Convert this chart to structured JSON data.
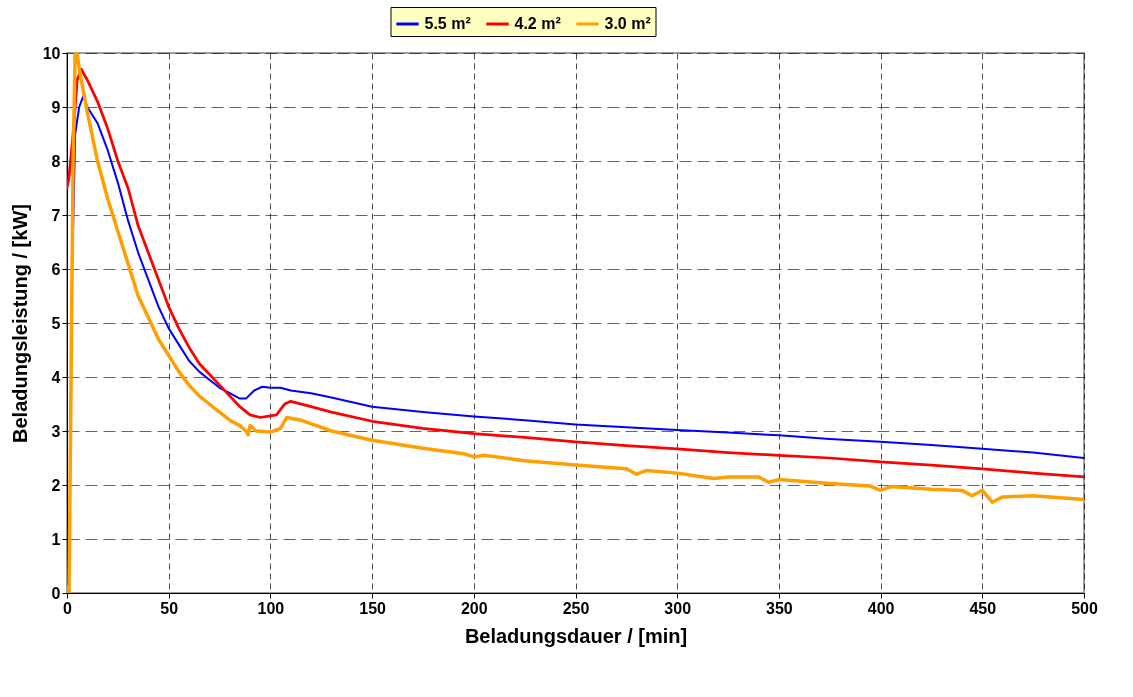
{
  "chart_data": {
    "type": "line",
    "xlabel": "Beladungsdauer / [min]",
    "ylabel": "Beladungsleistung / [kW]",
    "xlim": [
      0,
      500
    ],
    "xticks": [
      0,
      50,
      100,
      150,
      200,
      250,
      300,
      350,
      400,
      450,
      500
    ],
    "ylim": [
      0,
      10
    ],
    "yticks": [
      0,
      1,
      2,
      3,
      4,
      5,
      6,
      7,
      8,
      9,
      10
    ],
    "grid": true,
    "legend": "top",
    "line_style": "solid",
    "marker": "none",
    "series": [
      {
        "name": "5.5 m²",
        "color": "#0000ff",
        "x": [
          2,
          4,
          6,
          8,
          10,
          15,
          20,
          25,
          30,
          35,
          40,
          45,
          50,
          55,
          60,
          65,
          70,
          75,
          80,
          85,
          88,
          92,
          96,
          100,
          105,
          110,
          120,
          130,
          150,
          175,
          200,
          225,
          250,
          275,
          300,
          325,
          350,
          375,
          400,
          425,
          450,
          475,
          500
        ],
        "values": [
          5,
          8.5,
          9.0,
          9.2,
          9.0,
          8.7,
          8.2,
          7.6,
          6.9,
          6.3,
          5.8,
          5.3,
          4.9,
          4.6,
          4.3,
          4.1,
          3.95,
          3.8,
          3.7,
          3.6,
          3.6,
          3.75,
          3.82,
          3.8,
          3.8,
          3.75,
          3.7,
          3.62,
          3.45,
          3.35,
          3.27,
          3.2,
          3.12,
          3.07,
          3.02,
          2.97,
          2.92,
          2.85,
          2.8,
          2.74,
          2.67,
          2.6,
          2.5
        ]
      },
      {
        "name": "4.2 m²",
        "color": "#ff0000",
        "x": [
          0,
          1,
          3,
          5,
          7,
          10,
          15,
          20,
          25,
          30,
          35,
          40,
          45,
          50,
          55,
          60,
          65,
          70,
          75,
          80,
          85,
          90,
          95,
          100,
          103,
          107,
          110,
          120,
          130,
          150,
          175,
          200,
          225,
          250,
          275,
          300,
          325,
          350,
          375,
          400,
          425,
          450,
          475,
          500
        ],
        "values": [
          7.5,
          7.7,
          8.5,
          9.5,
          9.7,
          9.5,
          9.1,
          8.6,
          8.0,
          7.5,
          6.8,
          6.3,
          5.8,
          5.3,
          4.9,
          4.55,
          4.25,
          4.05,
          3.85,
          3.65,
          3.45,
          3.3,
          3.25,
          3.28,
          3.3,
          3.5,
          3.55,
          3.45,
          3.35,
          3.18,
          3.05,
          2.95,
          2.88,
          2.8,
          2.73,
          2.67,
          2.6,
          2.55,
          2.5,
          2.43,
          2.37,
          2.3,
          2.22,
          2.15
        ]
      },
      {
        "name": "3.0 m²",
        "color": "#ffa000",
        "x": [
          0,
          1,
          2,
          3,
          4,
          5,
          6,
          8,
          10,
          15,
          20,
          25,
          30,
          35,
          40,
          45,
          50,
          55,
          60,
          65,
          70,
          75,
          80,
          85,
          88,
          89,
          90,
          93,
          100,
          105,
          108,
          115,
          130,
          150,
          175,
          195,
          200,
          205,
          225,
          250,
          275,
          280,
          285,
          300,
          318,
          325,
          340,
          345,
          350,
          375,
          395,
          400,
          405,
          425,
          440,
          445,
          450,
          455,
          460,
          475,
          500
        ],
        "values": [
          0.1,
          0,
          4,
          8,
          10,
          10,
          9.7,
          9.3,
          8.9,
          8.0,
          7.3,
          6.7,
          6.1,
          5.5,
          5.1,
          4.7,
          4.4,
          4.1,
          3.85,
          3.65,
          3.5,
          3.35,
          3.2,
          3.1,
          3.0,
          2.93,
          3.1,
          3.0,
          2.98,
          3.05,
          3.25,
          3.2,
          3.0,
          2.83,
          2.68,
          2.58,
          2.52,
          2.55,
          2.45,
          2.37,
          2.3,
          2.2,
          2.27,
          2.22,
          2.12,
          2.15,
          2.15,
          2.05,
          2.1,
          2.03,
          1.98,
          1.9,
          1.97,
          1.92,
          1.9,
          1.8,
          1.9,
          1.68,
          1.78,
          1.8,
          1.73
        ]
      }
    ]
  }
}
